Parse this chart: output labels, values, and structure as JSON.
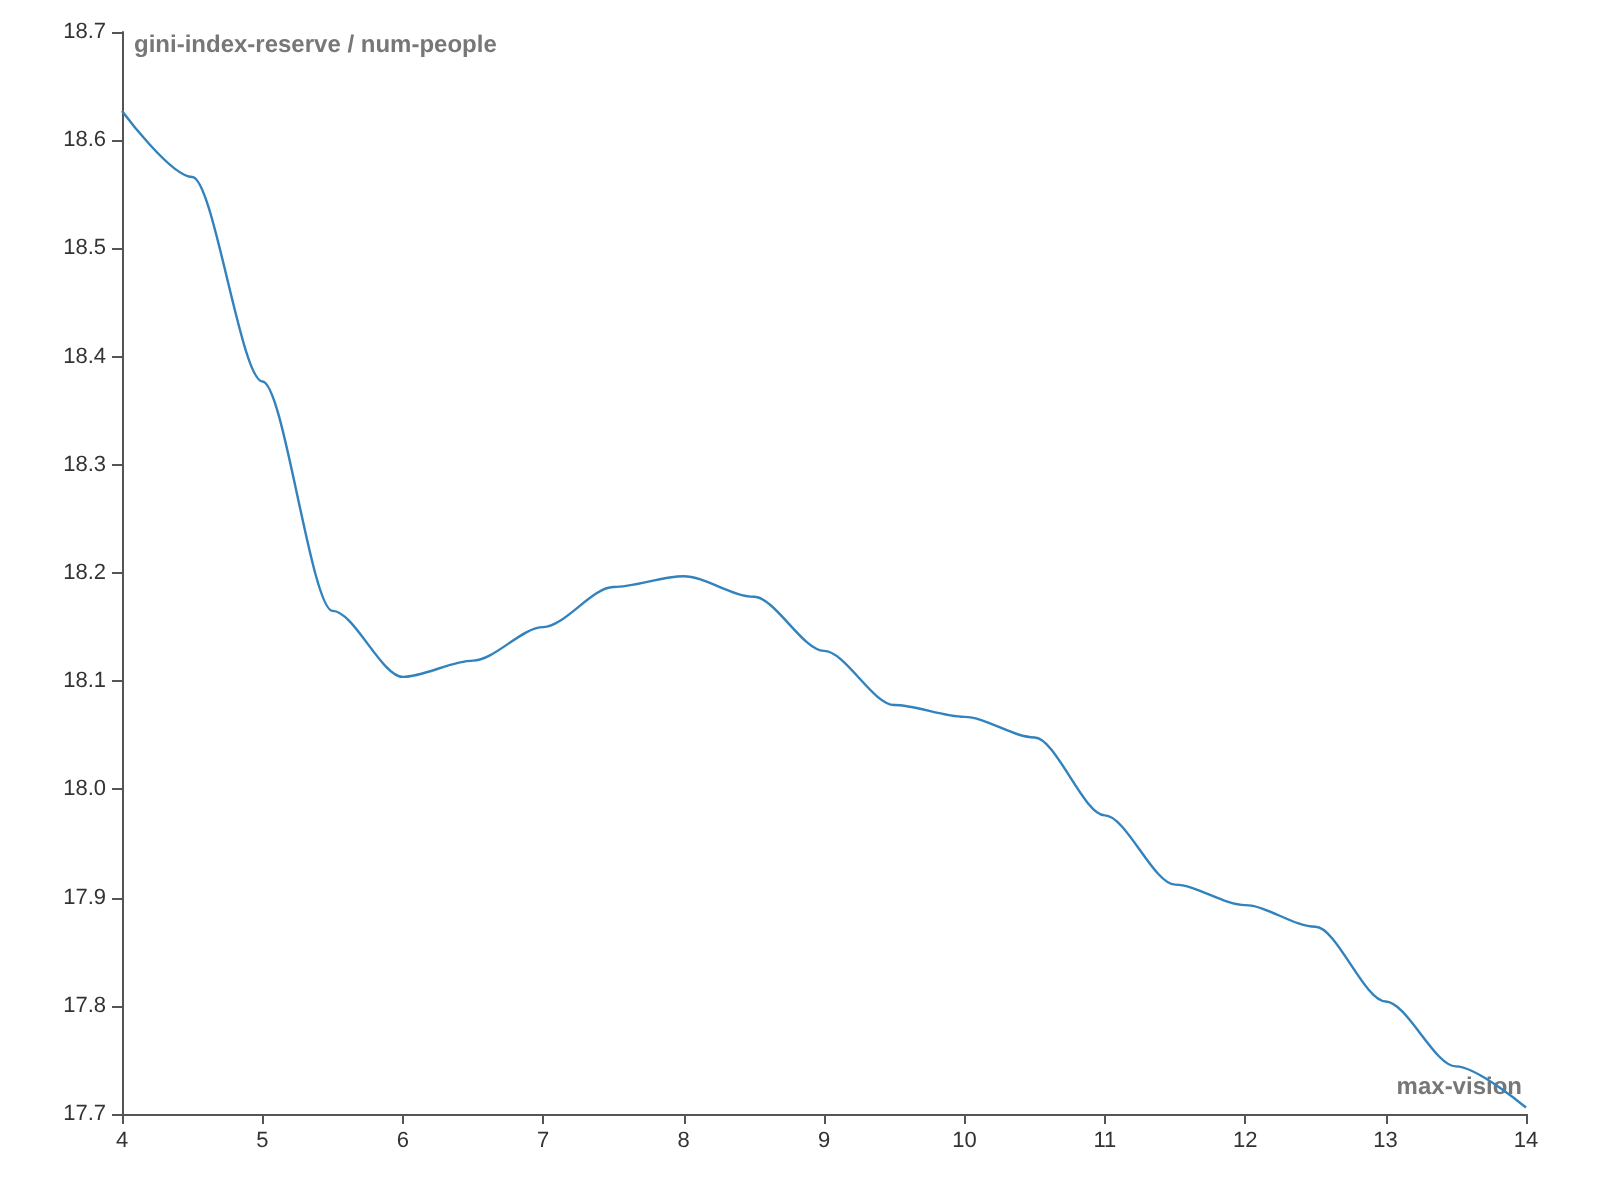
{
  "chart_data": {
    "type": "line",
    "xlabel": "max-vision",
    "ylabel": "gini-index-reserve / num-people",
    "x": [
      4,
      4.5,
      5,
      5.5,
      6,
      6.5,
      7,
      7.5,
      8,
      8.5,
      9,
      9.5,
      10,
      10.5,
      11,
      11.5,
      12,
      12.5,
      13,
      13.5,
      14
    ],
    "series": [
      {
        "color": "#3182bd",
        "values": [
          18.627,
          18.566,
          18.377,
          18.165,
          18.104,
          18.119,
          18.15,
          18.187,
          18.197,
          18.178,
          18.128,
          18.078,
          18.067,
          18.048,
          17.976,
          17.912,
          17.893,
          17.873,
          17.804,
          17.744,
          17.706
        ]
      }
    ],
    "xlim": [
      4,
      14
    ],
    "xticks": [
      4,
      5,
      6,
      7,
      8,
      9,
      10,
      11,
      12,
      13,
      14
    ],
    "ylim": [
      17.7,
      18.7
    ],
    "yticks": [
      17.7,
      17.8,
      17.9,
      {
        "value": 18,
        "label": "18.0"
      },
      18.1,
      18.2,
      18.3,
      18.4,
      18.5,
      18.6,
      18.7
    ],
    "grid": false,
    "marker": "none",
    "line_style": "solid"
  }
}
